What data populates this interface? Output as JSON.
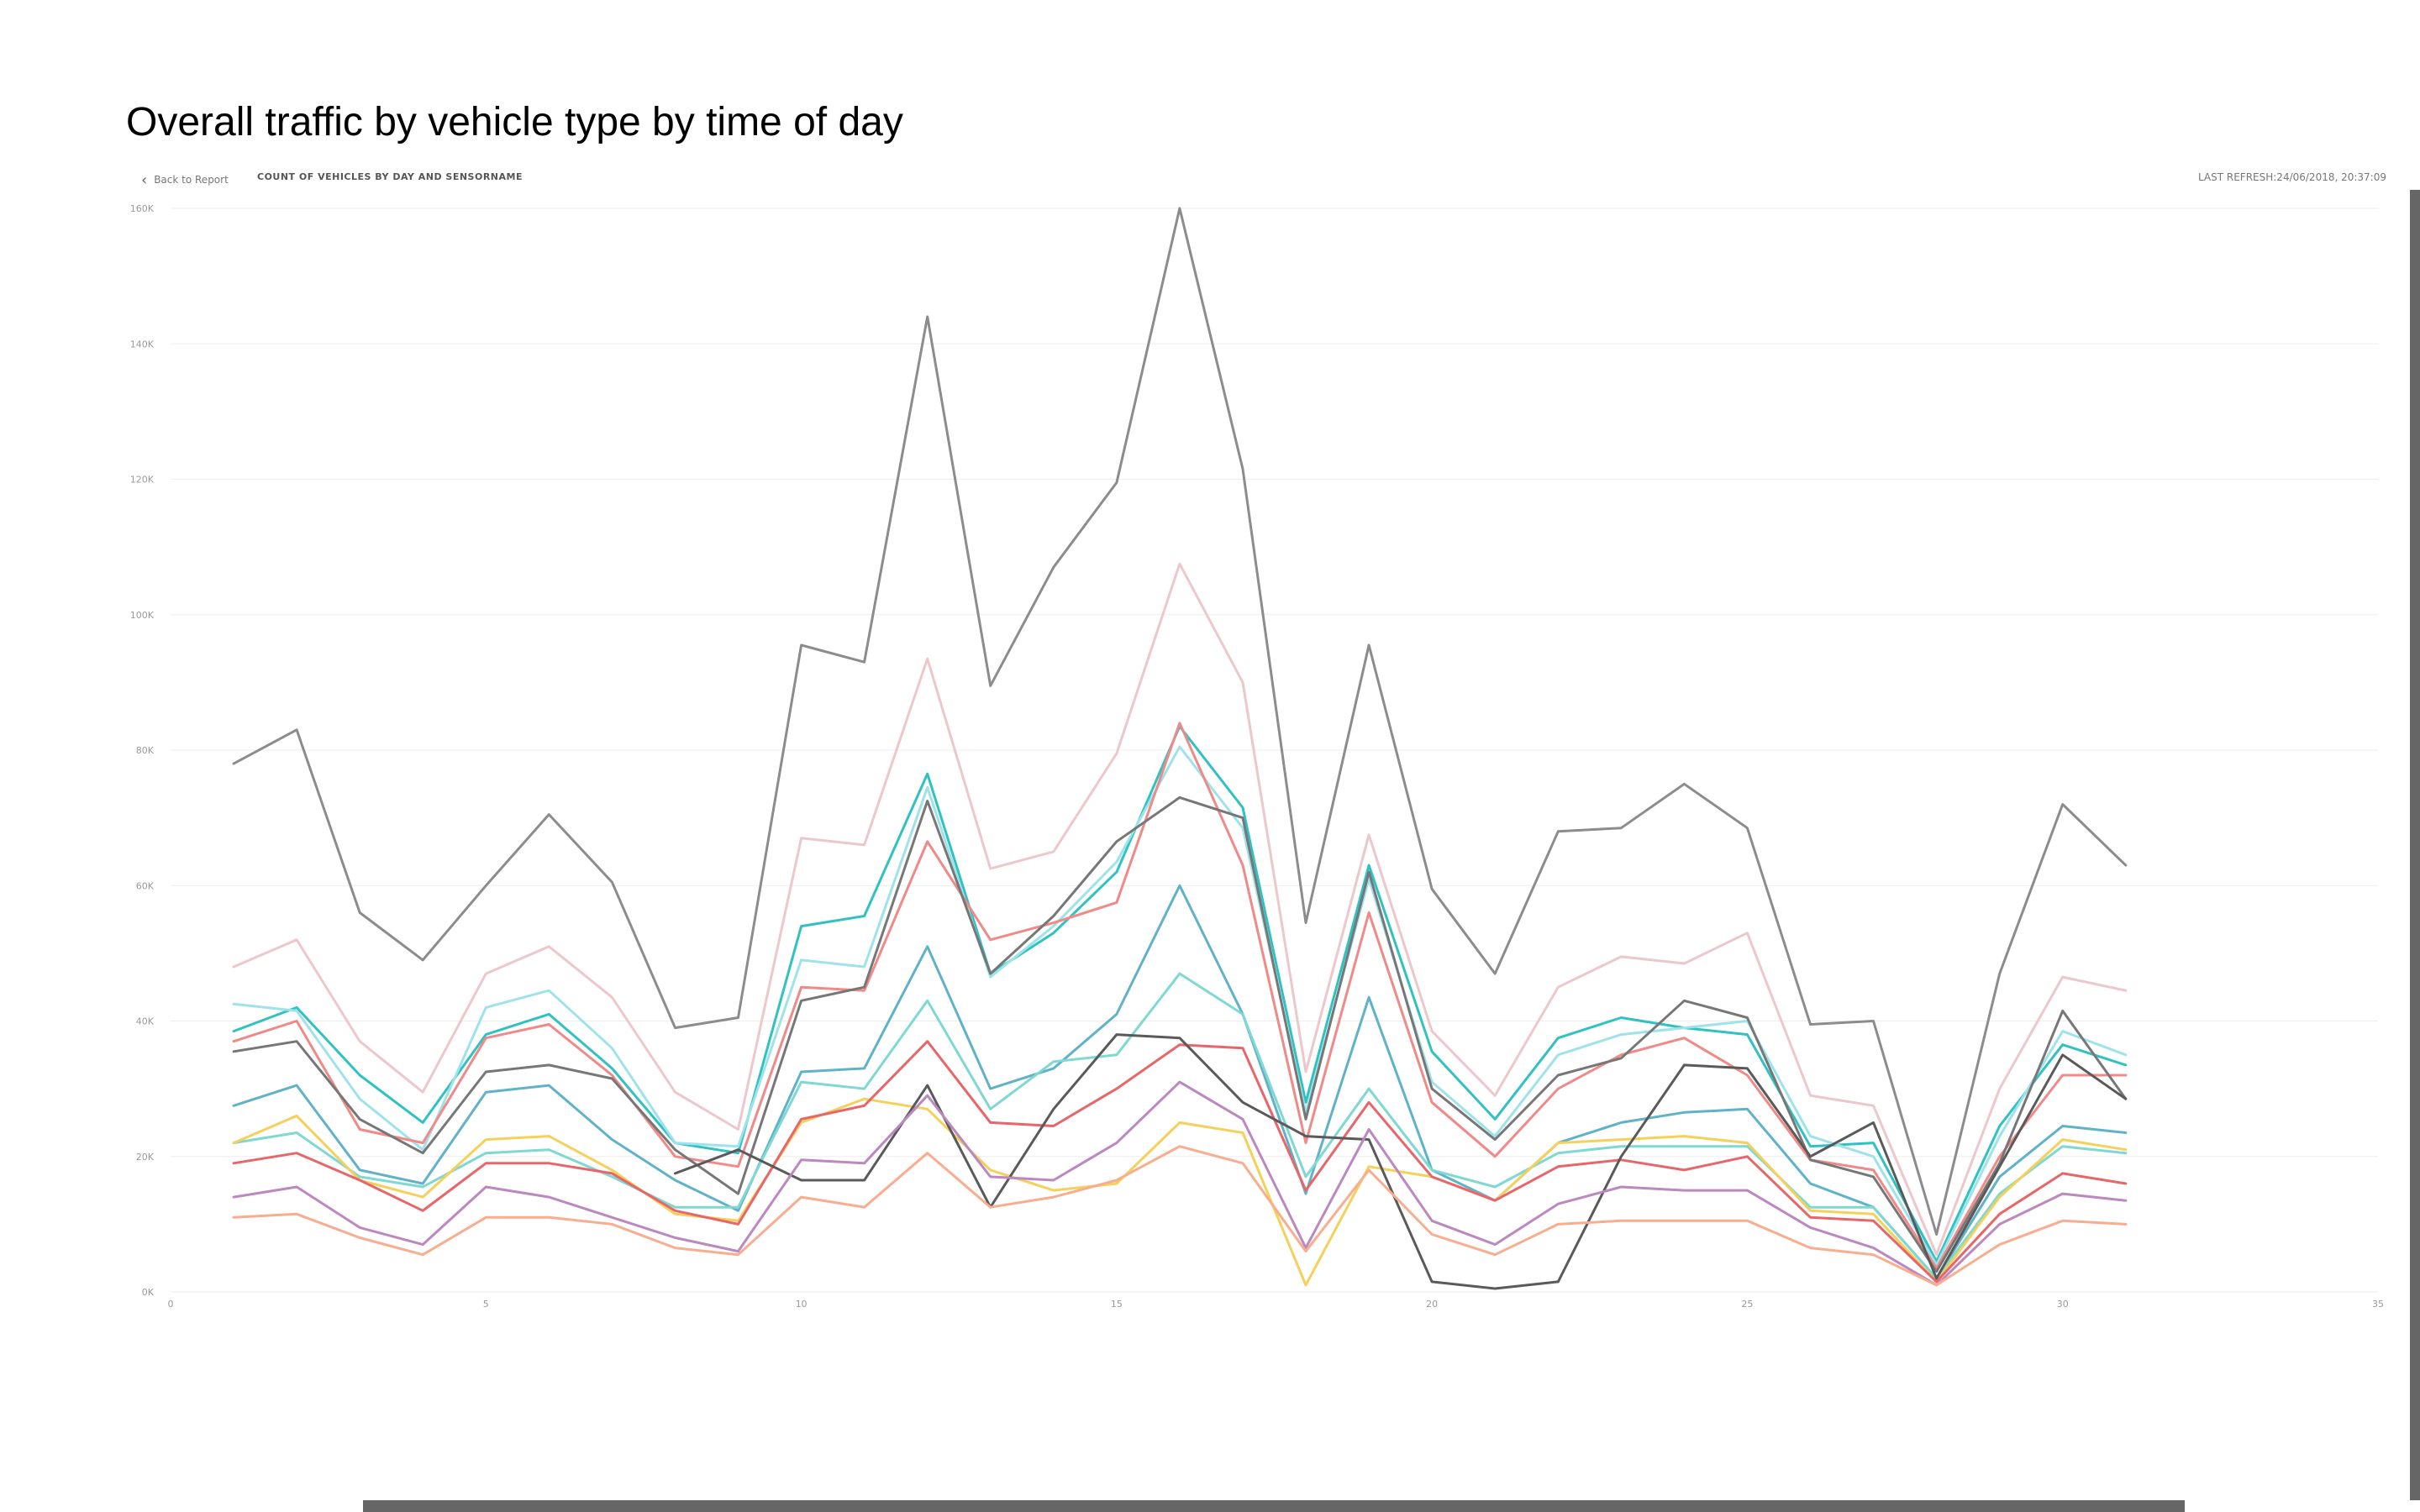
{
  "page": {
    "title": "Overall traffic by vehicle type by time of day"
  },
  "report_header": {
    "back_label": "Back to Report",
    "chart_title": "COUNT OF VEHICLES BY DAY AND SENSORNAME",
    "last_refresh": "LAST REFRESH:24/06/2018, 20:37:09"
  },
  "chart_data": {
    "type": "line",
    "title": "COUNT OF VEHICLES BY DAY AND SENSORNAME",
    "xlabel": "",
    "ylabel": "",
    "xlim": [
      0,
      35
    ],
    "ylim": [
      0,
      160000
    ],
    "x_ticks": [
      {
        "value": 0,
        "label": "0"
      },
      {
        "value": 5,
        "label": "5"
      },
      {
        "value": 10,
        "label": "10"
      },
      {
        "value": 15,
        "label": "15"
      },
      {
        "value": 20,
        "label": "20"
      },
      {
        "value": 25,
        "label": "25"
      },
      {
        "value": 30,
        "label": "30"
      },
      {
        "value": 35,
        "label": "35"
      }
    ],
    "y_ticks": [
      {
        "value": 0,
        "label": "0K"
      },
      {
        "value": 20000,
        "label": "20K"
      },
      {
        "value": 40000,
        "label": "40K"
      },
      {
        "value": 60000,
        "label": "60K"
      },
      {
        "value": 80000,
        "label": "80K"
      },
      {
        "value": 100000,
        "label": "100K"
      },
      {
        "value": 120000,
        "label": "120K"
      },
      {
        "value": 140000,
        "label": "140K"
      },
      {
        "value": 160000,
        "label": "160K"
      }
    ],
    "grid": true,
    "legend": "none",
    "x": [
      1,
      2,
      3,
      4,
      5,
      6,
      7,
      8,
      9,
      10,
      11,
      12,
      13,
      14,
      15,
      16,
      17,
      18,
      19,
      20,
      21,
      22,
      23,
      24,
      25,
      26,
      27,
      28,
      29,
      30,
      31
    ],
    "series": [
      {
        "color": "#8c8c8c",
        "values": [
          78000,
          83000,
          56000,
          49000,
          60000,
          70500,
          60500,
          39000,
          40500,
          95500,
          93000,
          144000,
          89500,
          107000,
          119500,
          160000,
          121500,
          54500,
          95500,
          59500,
          47000,
          68000,
          68500,
          75000,
          68500,
          39500,
          40000,
          8500,
          47000,
          72000,
          63000
        ]
      },
      {
        "color": "#ecc7cb",
        "values": [
          48000,
          52000,
          37000,
          29500,
          47000,
          51000,
          43500,
          29500,
          24000,
          67000,
          66000,
          93500,
          62500,
          65000,
          79500,
          107500,
          90000,
          32500,
          67500,
          38500,
          29000,
          45000,
          49500,
          48500,
          53000,
          29000,
          27500,
          5500,
          30000,
          46500,
          44500
        ]
      },
      {
        "color": "#30c2c2",
        "values": [
          38500,
          42000,
          32000,
          25000,
          38000,
          41000,
          33000,
          22000,
          20500,
          54000,
          55500,
          76500,
          47000,
          53000,
          62000,
          83500,
          71500,
          28000,
          63000,
          35500,
          25500,
          37500,
          40500,
          39000,
          38000,
          21500,
          22000,
          4500,
          24500,
          36500,
          33500
        ]
      },
      {
        "color": "#9fe3ea",
        "values": [
          42500,
          41500,
          28500,
          21000,
          42000,
          44500,
          36000,
          22000,
          21500,
          49000,
          48000,
          74500,
          46500,
          54000,
          63500,
          80500,
          68500,
          26500,
          61000,
          31000,
          23000,
          35000,
          38000,
          39000,
          40000,
          23000,
          20000,
          4000,
          23000,
          38500,
          35000
        ]
      },
      {
        "color": "#f08a88",
        "values": [
          37000,
          40000,
          24000,
          22000,
          37500,
          39500,
          32000,
          20000,
          18500,
          45000,
          44500,
          66500,
          52000,
          54500,
          57500,
          84000,
          63000,
          22000,
          56000,
          28000,
          20000,
          30000,
          35000,
          37500,
          32000,
          19500,
          18000,
          3500,
          20000,
          32000,
          32000
        ]
      },
      {
        "color": "#777777",
        "values": [
          35500,
          37000,
          25500,
          20500,
          32500,
          33500,
          31500,
          21000,
          14500,
          43000,
          45000,
          72500,
          47000,
          55500,
          66500,
          73000,
          70000,
          25500,
          62000,
          30000,
          22500,
          32000,
          34500,
          43000,
          40500,
          19500,
          17000,
          3000,
          19000,
          41500,
          28500
        ]
      },
      {
        "color": "#5fb2c8",
        "values": [
          27500,
          30500,
          18000,
          16000,
          29500,
          30500,
          22500,
          16500,
          12000,
          32500,
          33000,
          51000,
          30000,
          33000,
          41000,
          60000,
          41000,
          14500,
          43500,
          18000,
          13500,
          22000,
          25000,
          26500,
          27000,
          16000,
          12500,
          2000,
          17000,
          24500,
          23500
        ]
      },
      {
        "color": "#7fd8d2",
        "values": [
          22000,
          23500,
          17000,
          15500,
          20500,
          21000,
          17000,
          12500,
          12500,
          31000,
          30000,
          43000,
          27000,
          34000,
          35000,
          47000,
          41000,
          17000,
          30000,
          18000,
          15500,
          20500,
          21500,
          21500,
          21500,
          12500,
          12500,
          2000,
          14500,
          21500,
          20500
        ]
      },
      {
        "color": "#f5d05a",
        "values": [
          22000,
          26000,
          16500,
          14000,
          22500,
          23000,
          18000,
          11500,
          10500,
          25000,
          28500,
          27000,
          18000,
          15000,
          16000,
          25000,
          23500,
          1000,
          18500,
          17000,
          13500,
          22000,
          22500,
          23000,
          22000,
          12000,
          11500,
          1500,
          14000,
          22500,
          21000
        ]
      },
      {
        "color": "#e8666a",
        "values": [
          19000,
          20500,
          16500,
          12000,
          19000,
          19000,
          17500,
          12000,
          10000,
          25500,
          27500,
          37000,
          25000,
          24500,
          30000,
          36500,
          36000,
          15000,
          28000,
          17000,
          13500,
          18500,
          19500,
          18000,
          20000,
          11000,
          10500,
          1500,
          11500,
          17500,
          16000
        ]
      },
      {
        "color": "#5a5a5a",
        "values": [
          null,
          null,
          null,
          null,
          null,
          null,
          null,
          17500,
          21000,
          16500,
          16500,
          30500,
          12500,
          27000,
          38000,
          37500,
          28000,
          23000,
          22500,
          1500,
          500,
          1500,
          20000,
          33500,
          33000,
          20000,
          25000,
          2000,
          18500,
          35000,
          28500
        ]
      },
      {
        "color": "#bb88bf",
        "values": [
          14000,
          15500,
          9500,
          7000,
          15500,
          14000,
          11000,
          8000,
          6000,
          19500,
          19000,
          29000,
          17000,
          16500,
          22000,
          31000,
          25500,
          6500,
          24000,
          10500,
          7000,
          13000,
          15500,
          15000,
          15000,
          9500,
          6500,
          1000,
          10000,
          14500,
          13500
        ]
      },
      {
        "color": "#f9ad8f",
        "values": [
          11000,
          11500,
          8000,
          5500,
          11000,
          11000,
          10000,
          6500,
          5500,
          14000,
          12500,
          20500,
          12500,
          14000,
          16500,
          21500,
          19000,
          6000,
          18000,
          8500,
          5500,
          10000,
          10500,
          10500,
          10500,
          6500,
          5500,
          1000,
          7000,
          10500,
          10000
        ]
      }
    ]
  }
}
